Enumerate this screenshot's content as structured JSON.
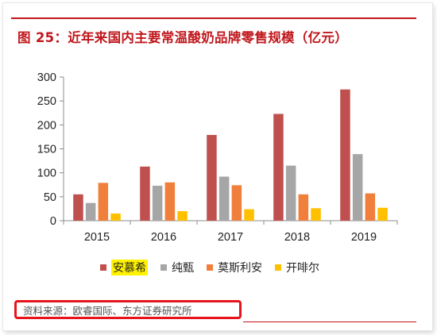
{
  "title": "图 25：近年来国内主要常温酸奶品牌零售规模（亿元）",
  "source": "资料来源：欧睿国际、东方证券研究所",
  "colors": {
    "accent": "#c0171c",
    "source_box_border": "#e8141b",
    "legend_highlight": "#fff200"
  },
  "chart_data": {
    "type": "bar",
    "title": "",
    "xlabel": "",
    "ylabel": "",
    "ylim": [
      0,
      300
    ],
    "yticks": [
      0,
      50,
      100,
      150,
      200,
      250,
      300
    ],
    "grid": false,
    "legend_placement": "bottom",
    "categories": [
      "2015",
      "2016",
      "2017",
      "2018",
      "2019"
    ],
    "series": [
      {
        "name": "安慕希",
        "color": "#c0504d",
        "values": [
          55,
          113,
          179,
          223,
          274
        ]
      },
      {
        "name": "纯甄",
        "color": "#a6a6a6",
        "values": [
          37,
          73,
          92,
          115,
          139
        ]
      },
      {
        "name": "莫斯利安",
        "color": "#f07f3c",
        "values": [
          79,
          80,
          74,
          55,
          57
        ]
      },
      {
        "name": "开啡尔",
        "color": "#ffc000",
        "values": [
          15,
          20,
          24,
          26,
          27
        ]
      }
    ]
  }
}
